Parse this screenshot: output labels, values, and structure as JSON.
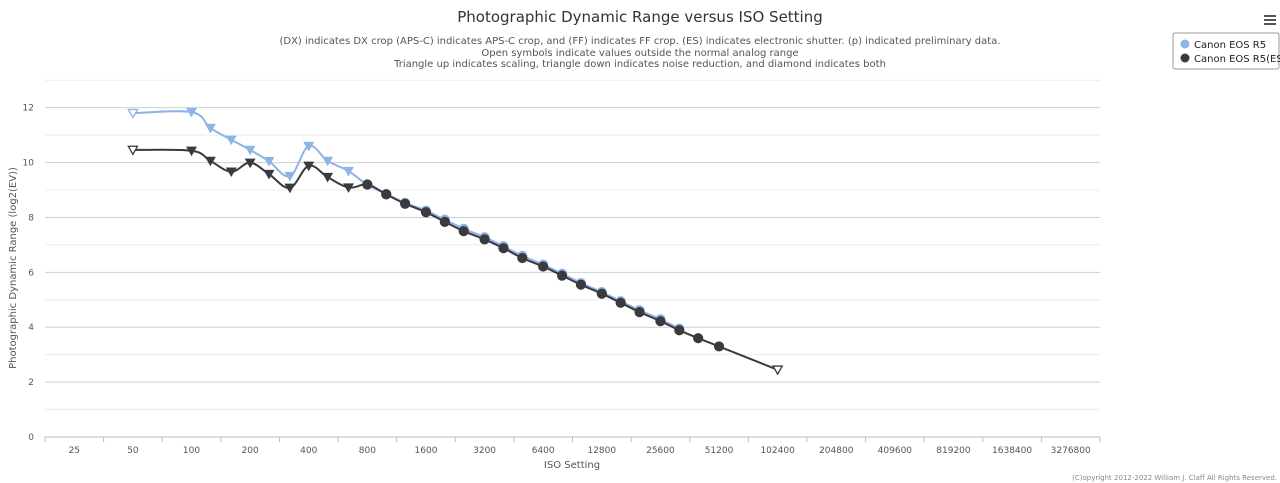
{
  "chart_data": {
    "type": "line",
    "title": "Photographic Dynamic Range versus ISO Setting",
    "subtitle": [
      "(DX) indicates DX crop (APS-C) indicates APS-C crop, and (FF) indicates FF crop. (ES) indicates electronic shutter. (p) indicated preliminary data.",
      "Open symbols indicate values outside the normal analog range",
      "Triangle up indicates scaling, triangle down indicates noise reduction, and diamond indicates both"
    ],
    "xlabel": "ISO Setting",
    "ylabel": "Photographic Dynamic Range (log2(EV))",
    "x_scale": "log2",
    "x_categories": [
      "25",
      "50",
      "100",
      "200",
      "400",
      "800",
      "1600",
      "3200",
      "6400",
      "12800",
      "25600",
      "51200",
      "102400",
      "204800",
      "409600",
      "819200",
      "1638400",
      "3276800"
    ],
    "ylim": [
      0,
      13.3
    ],
    "yticks": [
      0,
      2,
      4,
      6,
      8,
      10,
      12
    ],
    "grid": true,
    "legend_position": "top-right",
    "series": [
      {
        "name": "Canon EOS R5",
        "color": "#8fb4e6",
        "points": [
          {
            "x": 50,
            "y": 11.8,
            "m": "tri-down-open"
          },
          {
            "x": 100,
            "y": 11.84,
            "m": "tri-down"
          },
          {
            "x": 125,
            "y": 11.26,
            "m": "tri-down"
          },
          {
            "x": 160,
            "y": 10.83,
            "m": "tri-down"
          },
          {
            "x": 200,
            "y": 10.46,
            "m": "tri-down"
          },
          {
            "x": 250,
            "y": 10.05,
            "m": "tri-down"
          },
          {
            "x": 320,
            "y": 9.51,
            "m": "tri-down"
          },
          {
            "x": 400,
            "y": 10.6,
            "m": "tri-down"
          },
          {
            "x": 500,
            "y": 10.06,
            "m": "tri-down"
          },
          {
            "x": 640,
            "y": 9.69,
            "m": "tri-down"
          },
          {
            "x": 800,
            "y": 9.19,
            "m": "circle"
          },
          {
            "x": 1000,
            "y": 8.86,
            "m": "circle"
          },
          {
            "x": 1250,
            "y": 8.53,
            "m": "circle"
          },
          {
            "x": 1600,
            "y": 8.25,
            "m": "circle"
          },
          {
            "x": 2000,
            "y": 7.92,
            "m": "circle"
          },
          {
            "x": 2500,
            "y": 7.59,
            "m": "circle"
          },
          {
            "x": 3200,
            "y": 7.28,
            "m": "circle"
          },
          {
            "x": 4000,
            "y": 6.95,
            "m": "circle"
          },
          {
            "x": 5000,
            "y": 6.6,
            "m": "circle"
          },
          {
            "x": 6400,
            "y": 6.28,
            "m": "circle"
          },
          {
            "x": 8000,
            "y": 5.95,
            "m": "circle"
          },
          {
            "x": 10000,
            "y": 5.61,
            "m": "circle"
          },
          {
            "x": 12800,
            "y": 5.28,
            "m": "circle"
          },
          {
            "x": 16000,
            "y": 4.95,
            "m": "circle"
          },
          {
            "x": 20000,
            "y": 4.62,
            "m": "circle"
          },
          {
            "x": 25600,
            "y": 4.29,
            "m": "circle"
          },
          {
            "x": 32000,
            "y": 3.95,
            "m": "circle"
          }
        ]
      },
      {
        "name": "Canon EOS R5(ES)",
        "color": "#3a3a3f",
        "points": [
          {
            "x": 50,
            "y": 10.46,
            "m": "tri-down-open"
          },
          {
            "x": 100,
            "y": 10.43,
            "m": "tri-down"
          },
          {
            "x": 125,
            "y": 10.06,
            "m": "tri-down"
          },
          {
            "x": 160,
            "y": 9.67,
            "m": "tri-down"
          },
          {
            "x": 200,
            "y": 9.99,
            "m": "tri-down"
          },
          {
            "x": 250,
            "y": 9.58,
            "m": "tri-down"
          },
          {
            "x": 320,
            "y": 9.08,
            "m": "tri-down"
          },
          {
            "x": 400,
            "y": 9.88,
            "m": "tri-down"
          },
          {
            "x": 500,
            "y": 9.47,
            "m": "tri-down"
          },
          {
            "x": 640,
            "y": 9.09,
            "m": "tri-down"
          },
          {
            "x": 800,
            "y": 9.2,
            "m": "circle"
          },
          {
            "x": 1000,
            "y": 8.84,
            "m": "circle"
          },
          {
            "x": 1250,
            "y": 8.5,
            "m": "circle"
          },
          {
            "x": 1600,
            "y": 8.19,
            "m": "circle"
          },
          {
            "x": 2000,
            "y": 7.84,
            "m": "circle"
          },
          {
            "x": 2500,
            "y": 7.5,
            "m": "circle"
          },
          {
            "x": 3200,
            "y": 7.2,
            "m": "circle"
          },
          {
            "x": 4000,
            "y": 6.88,
            "m": "circle"
          },
          {
            "x": 5000,
            "y": 6.52,
            "m": "circle"
          },
          {
            "x": 6400,
            "y": 6.21,
            "m": "circle"
          },
          {
            "x": 8000,
            "y": 5.88,
            "m": "circle"
          },
          {
            "x": 10000,
            "y": 5.55,
            "m": "circle"
          },
          {
            "x": 12800,
            "y": 5.22,
            "m": "circle"
          },
          {
            "x": 16000,
            "y": 4.89,
            "m": "circle"
          },
          {
            "x": 20000,
            "y": 4.55,
            "m": "circle"
          },
          {
            "x": 25600,
            "y": 4.22,
            "m": "circle"
          },
          {
            "x": 32000,
            "y": 3.89,
            "m": "circle"
          },
          {
            "x": 40000,
            "y": 3.6,
            "m": "circle"
          },
          {
            "x": 51200,
            "y": 3.3,
            "m": "circle"
          },
          {
            "x": 102400,
            "y": 2.45,
            "m": "tri-down-open"
          }
        ]
      }
    ]
  },
  "credits": "(C)opyright 2012-2022 William J. Claff All Rights Reserved.",
  "menu_icon": "hamburger-menu-icon"
}
